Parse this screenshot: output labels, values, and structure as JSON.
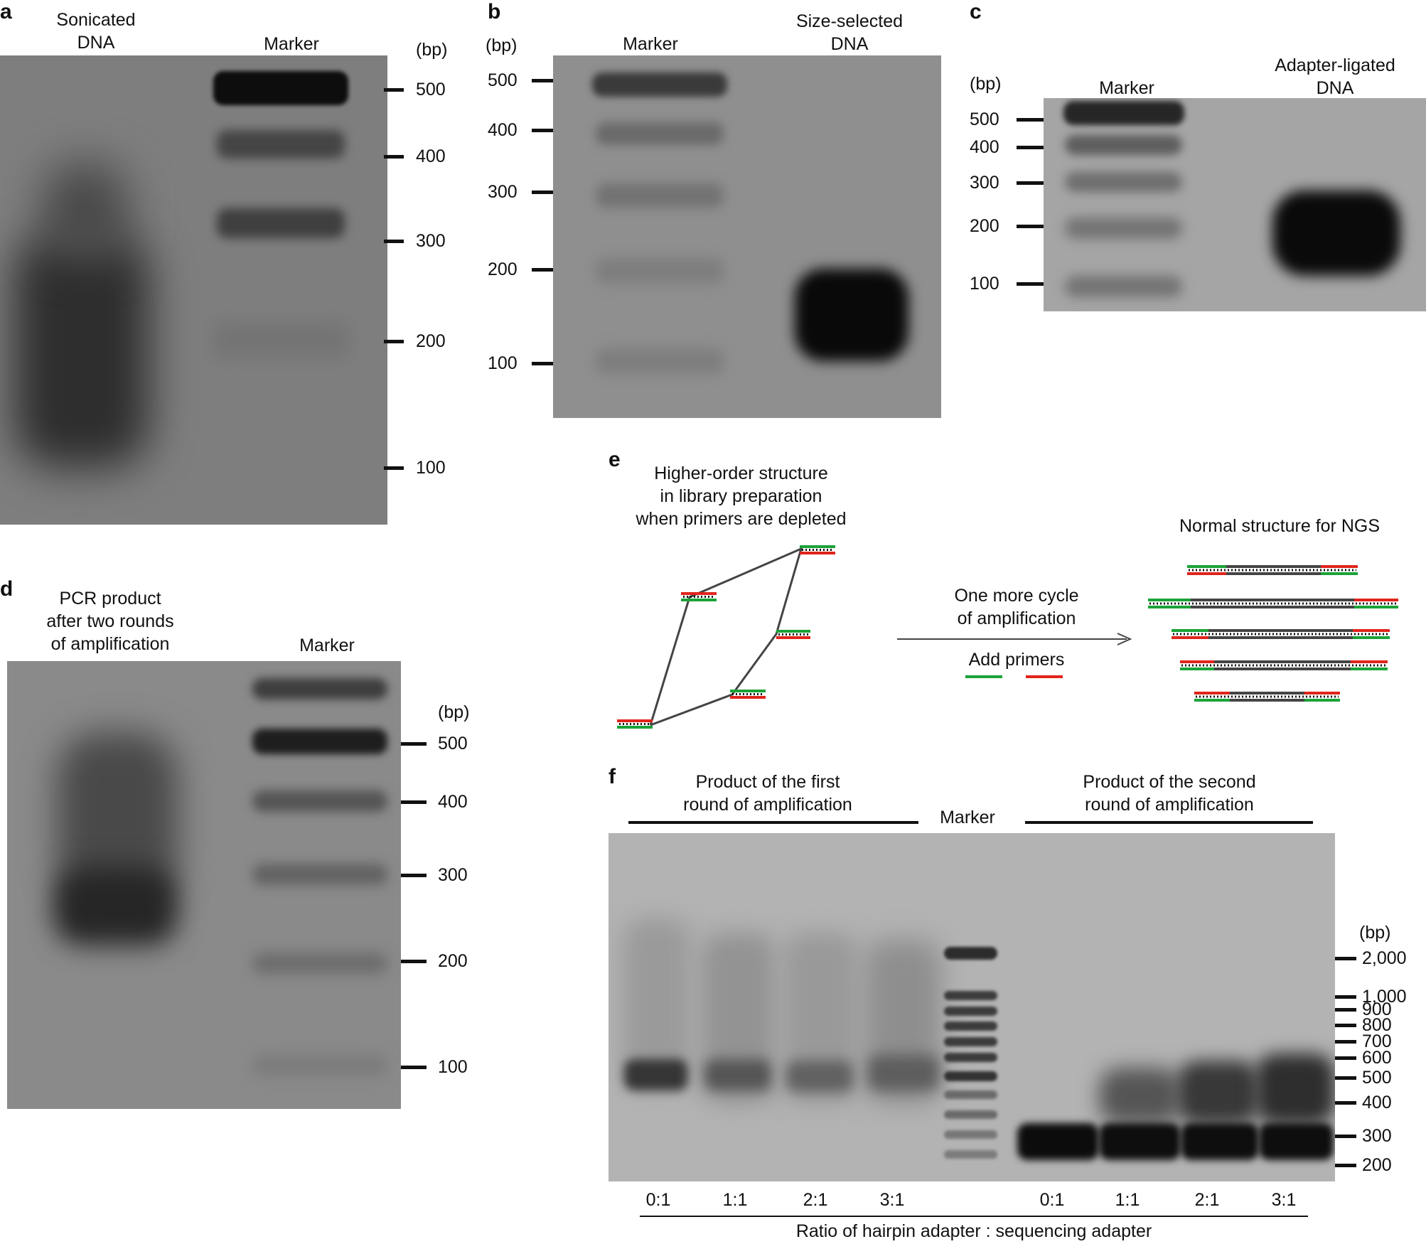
{
  "panel_a": {
    "label": "a",
    "lanes": [
      "Sonicated\nDNA",
      "Marker"
    ],
    "unit": "(bp)",
    "ticks": [
      "500",
      "400",
      "300",
      "200",
      "100"
    ]
  },
  "panel_b": {
    "label": "b",
    "lanes": [
      "Marker",
      "Size-selected\nDNA"
    ],
    "unit": "(bp)",
    "ticks": [
      "500",
      "400",
      "300",
      "200",
      "100"
    ]
  },
  "panel_c": {
    "label": "c",
    "lanes": [
      "Marker",
      "Adapter-ligated\nDNA"
    ],
    "unit": "(bp)",
    "ticks": [
      "500",
      "400",
      "300",
      "200",
      "100"
    ]
  },
  "panel_d": {
    "label": "d",
    "lanes": [
      "PCR product\nafter two rounds\nof amplification",
      "Marker"
    ],
    "unit": "(bp)",
    "ticks": [
      "500",
      "400",
      "300",
      "200",
      "100"
    ]
  },
  "panel_e": {
    "label": "e",
    "left_title": "Higher-order structure\nin library preparation\nwhen primers are depleted",
    "arrow_top": "One more cycle\nof amplification",
    "arrow_bottom": "Add primers",
    "right_title": "Normal structure for NGS",
    "colors": {
      "primer_green": "#1aa337",
      "primer_red": "#e0241b"
    }
  },
  "panel_f": {
    "label": "f",
    "group1": "Product of the first\nround of amplification",
    "marker": "Marker",
    "group2": "Product of the second\nround of amplification",
    "unit": "(bp)",
    "ticks": [
      "2,000",
      "1,000",
      "900",
      "800",
      "700",
      "600",
      "500",
      "400",
      "300",
      "200"
    ],
    "ratios": [
      "0:1",
      "1:1",
      "2:1",
      "3:1",
      "0:1",
      "1:1",
      "2:1",
      "3:1"
    ],
    "caption": "Ratio of hairpin adapter : sequencing adapter"
  }
}
